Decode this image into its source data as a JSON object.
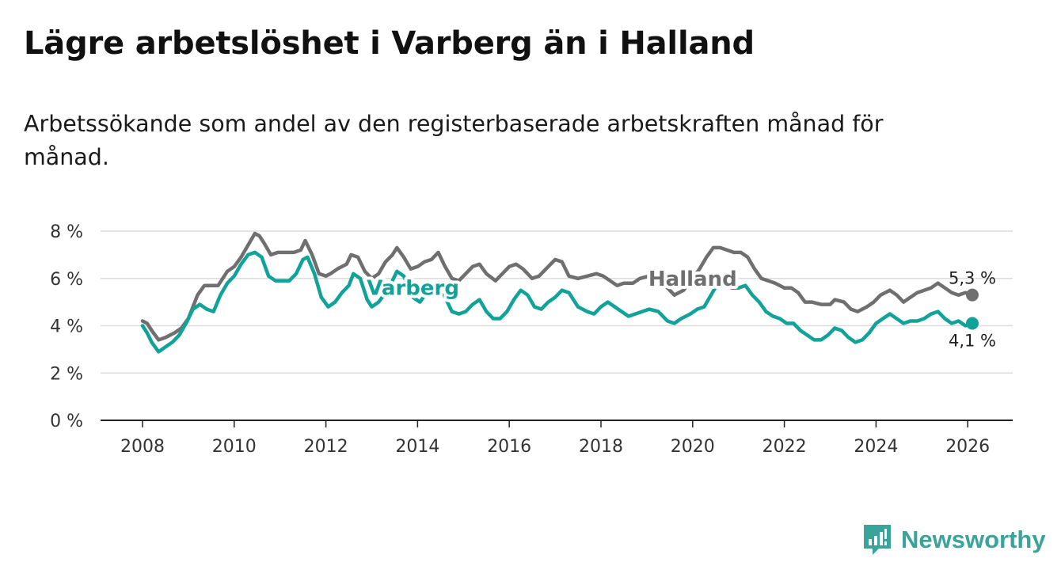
{
  "title": "Lägre arbetslöshet i Varberg än i Halland",
  "subtitle": "Arbetssökande som andel av den registerbaserade arbetskraften månad för månad.",
  "brand": {
    "name": "Newsworthy",
    "color": "#3aa39a"
  },
  "chart_data": {
    "type": "line",
    "title": "Lägre arbetslöshet i Varberg än i Halland",
    "xlabel": "",
    "ylabel": "",
    "xlim": [
      2007.0,
      2027.0
    ],
    "ylim": [
      0,
      8
    ],
    "y_ticks": [
      0,
      2,
      4,
      6,
      8
    ],
    "y_tick_labels": [
      "0 %",
      "2 %",
      "4 %",
      "6 %",
      "8 %"
    ],
    "x_ticks": [
      2008,
      2010,
      2012,
      2014,
      2016,
      2018,
      2020,
      2022,
      2024,
      2026
    ],
    "x_tick_labels": [
      "2008",
      "2010",
      "2012",
      "2014",
      "2016",
      "2018",
      "2020",
      "2022",
      "2024",
      "2026"
    ],
    "grid": true,
    "series": [
      {
        "name": "Halland",
        "color": "#6f6f6f",
        "end_label": "5,3 %",
        "points": [
          [
            2008.0,
            4.2
          ],
          [
            2008.1,
            4.1
          ],
          [
            2008.2,
            3.8
          ],
          [
            2008.35,
            3.4
          ],
          [
            2008.5,
            3.5
          ],
          [
            2008.7,
            3.7
          ],
          [
            2008.85,
            3.9
          ],
          [
            2009.0,
            4.3
          ],
          [
            2009.2,
            5.3
          ],
          [
            2009.35,
            5.7
          ],
          [
            2009.5,
            5.7
          ],
          [
            2009.65,
            5.7
          ],
          [
            2009.85,
            6.3
          ],
          [
            2010.0,
            6.5
          ],
          [
            2010.15,
            6.9
          ],
          [
            2010.3,
            7.4
          ],
          [
            2010.45,
            7.9
          ],
          [
            2010.55,
            7.8
          ],
          [
            2010.65,
            7.5
          ],
          [
            2010.8,
            7.0
          ],
          [
            2010.95,
            7.1
          ],
          [
            2011.1,
            7.1
          ],
          [
            2011.3,
            7.1
          ],
          [
            2011.45,
            7.2
          ],
          [
            2011.55,
            7.6
          ],
          [
            2011.7,
            7.0
          ],
          [
            2011.85,
            6.2
          ],
          [
            2012.0,
            6.1
          ],
          [
            2012.1,
            6.2
          ],
          [
            2012.25,
            6.4
          ],
          [
            2012.45,
            6.6
          ],
          [
            2012.55,
            7.0
          ],
          [
            2012.7,
            6.9
          ],
          [
            2012.85,
            6.3
          ],
          [
            2013.0,
            6.0
          ],
          [
            2013.15,
            6.2
          ],
          [
            2013.3,
            6.7
          ],
          [
            2013.45,
            7.0
          ],
          [
            2013.55,
            7.3
          ],
          [
            2013.7,
            6.9
          ],
          [
            2013.85,
            6.4
          ],
          [
            2014.0,
            6.5
          ],
          [
            2014.15,
            6.7
          ],
          [
            2014.3,
            6.8
          ],
          [
            2014.45,
            7.1
          ],
          [
            2014.6,
            6.5
          ],
          [
            2014.75,
            6.0
          ],
          [
            2014.9,
            5.9
          ],
          [
            2015.05,
            6.2
          ],
          [
            2015.2,
            6.5
          ],
          [
            2015.35,
            6.6
          ],
          [
            2015.5,
            6.2
          ],
          [
            2015.7,
            5.9
          ],
          [
            2015.85,
            6.2
          ],
          [
            2016.0,
            6.5
          ],
          [
            2016.15,
            6.6
          ],
          [
            2016.3,
            6.4
          ],
          [
            2016.5,
            6.0
          ],
          [
            2016.65,
            6.1
          ],
          [
            2016.8,
            6.4
          ],
          [
            2017.0,
            6.8
          ],
          [
            2017.15,
            6.7
          ],
          [
            2017.3,
            6.1
          ],
          [
            2017.5,
            6.0
          ],
          [
            2017.7,
            6.1
          ],
          [
            2017.9,
            6.2
          ],
          [
            2018.05,
            6.1
          ],
          [
            2018.2,
            5.9
          ],
          [
            2018.35,
            5.7
          ],
          [
            2018.5,
            5.8
          ],
          [
            2018.7,
            5.8
          ],
          [
            2018.85,
            6.0
          ],
          [
            2019.05,
            6.1
          ],
          [
            2019.25,
            5.9
          ],
          [
            2019.45,
            5.6
          ],
          [
            2019.6,
            5.3
          ],
          [
            2019.8,
            5.5
          ],
          [
            2020.0,
            6.0
          ],
          [
            2020.15,
            6.4
          ],
          [
            2020.3,
            6.9
          ],
          [
            2020.45,
            7.3
          ],
          [
            2020.6,
            7.3
          ],
          [
            2020.75,
            7.2
          ],
          [
            2020.9,
            7.1
          ],
          [
            2021.05,
            7.1
          ],
          [
            2021.2,
            6.9
          ],
          [
            2021.35,
            6.4
          ],
          [
            2021.5,
            6.0
          ],
          [
            2021.65,
            5.9
          ],
          [
            2021.8,
            5.8
          ],
          [
            2022.0,
            5.6
          ],
          [
            2022.15,
            5.6
          ],
          [
            2022.3,
            5.4
          ],
          [
            2022.45,
            5.0
          ],
          [
            2022.6,
            5.0
          ],
          [
            2022.8,
            4.9
          ],
          [
            2023.0,
            4.9
          ],
          [
            2023.1,
            5.1
          ],
          [
            2023.3,
            5.0
          ],
          [
            2023.45,
            4.7
          ],
          [
            2023.6,
            4.6
          ],
          [
            2023.8,
            4.8
          ],
          [
            2023.95,
            5.0
          ],
          [
            2024.1,
            5.3
          ],
          [
            2024.3,
            5.5
          ],
          [
            2024.45,
            5.3
          ],
          [
            2024.6,
            5.0
          ],
          [
            2024.75,
            5.2
          ],
          [
            2024.9,
            5.4
          ],
          [
            2025.05,
            5.5
          ],
          [
            2025.2,
            5.6
          ],
          [
            2025.35,
            5.8
          ],
          [
            2025.5,
            5.6
          ],
          [
            2025.65,
            5.4
          ],
          [
            2025.8,
            5.3
          ],
          [
            2025.95,
            5.4
          ],
          [
            2026.1,
            5.3
          ]
        ]
      },
      {
        "name": "Varberg",
        "color": "#11a39a",
        "end_label": "4,1 %",
        "points": [
          [
            2008.0,
            4.0
          ],
          [
            2008.1,
            3.7
          ],
          [
            2008.2,
            3.3
          ],
          [
            2008.35,
            2.9
          ],
          [
            2008.5,
            3.1
          ],
          [
            2008.65,
            3.3
          ],
          [
            2008.8,
            3.6
          ],
          [
            2008.95,
            4.1
          ],
          [
            2009.1,
            4.7
          ],
          [
            2009.25,
            4.9
          ],
          [
            2009.4,
            4.7
          ],
          [
            2009.55,
            4.6
          ],
          [
            2009.7,
            5.3
          ],
          [
            2009.85,
            5.8
          ],
          [
            2010.0,
            6.1
          ],
          [
            2010.15,
            6.6
          ],
          [
            2010.3,
            7.0
          ],
          [
            2010.45,
            7.1
          ],
          [
            2010.6,
            6.9
          ],
          [
            2010.75,
            6.1
          ],
          [
            2010.9,
            5.9
          ],
          [
            2011.05,
            5.9
          ],
          [
            2011.2,
            5.9
          ],
          [
            2011.35,
            6.2
          ],
          [
            2011.5,
            6.8
          ],
          [
            2011.6,
            6.9
          ],
          [
            2011.75,
            6.2
          ],
          [
            2011.9,
            5.2
          ],
          [
            2012.05,
            4.8
          ],
          [
            2012.2,
            5.0
          ],
          [
            2012.35,
            5.4
          ],
          [
            2012.5,
            5.7
          ],
          [
            2012.6,
            6.2
          ],
          [
            2012.75,
            6.0
          ],
          [
            2012.9,
            5.1
          ],
          [
            2013.0,
            4.8
          ],
          [
            2013.15,
            5.0
          ],
          [
            2013.3,
            5.4
          ],
          [
            2013.45,
            5.9
          ],
          [
            2013.55,
            6.3
          ],
          [
            2013.7,
            6.1
          ],
          [
            2013.9,
            5.2
          ],
          [
            2014.05,
            5.0
          ],
          [
            2014.2,
            5.4
          ],
          [
            2014.35,
            5.6
          ],
          [
            2014.5,
            5.7
          ],
          [
            2014.6,
            5.2
          ],
          [
            2014.75,
            4.6
          ],
          [
            2014.9,
            4.5
          ],
          [
            2015.05,
            4.6
          ],
          [
            2015.2,
            4.9
          ],
          [
            2015.35,
            5.1
          ],
          [
            2015.5,
            4.6
          ],
          [
            2015.65,
            4.3
          ],
          [
            2015.8,
            4.3
          ],
          [
            2015.95,
            4.6
          ],
          [
            2016.1,
            5.1
          ],
          [
            2016.25,
            5.5
          ],
          [
            2016.4,
            5.3
          ],
          [
            2016.55,
            4.8
          ],
          [
            2016.7,
            4.7
          ],
          [
            2016.85,
            5.0
          ],
          [
            2017.0,
            5.2
          ],
          [
            2017.15,
            5.5
          ],
          [
            2017.3,
            5.4
          ],
          [
            2017.5,
            4.8
          ],
          [
            2017.7,
            4.6
          ],
          [
            2017.85,
            4.5
          ],
          [
            2018.0,
            4.8
          ],
          [
            2018.15,
            5.0
          ],
          [
            2018.3,
            4.8
          ],
          [
            2018.45,
            4.6
          ],
          [
            2018.6,
            4.4
          ],
          [
            2018.75,
            4.5
          ],
          [
            2018.9,
            4.6
          ],
          [
            2019.05,
            4.7
          ],
          [
            2019.25,
            4.6
          ],
          [
            2019.45,
            4.2
          ],
          [
            2019.6,
            4.1
          ],
          [
            2019.75,
            4.3
          ],
          [
            2019.95,
            4.5
          ],
          [
            2020.1,
            4.7
          ],
          [
            2020.25,
            4.8
          ],
          [
            2020.4,
            5.3
          ],
          [
            2020.55,
            5.8
          ],
          [
            2020.7,
            5.8
          ],
          [
            2020.85,
            5.6
          ],
          [
            2021.0,
            5.6
          ],
          [
            2021.15,
            5.7
          ],
          [
            2021.3,
            5.3
          ],
          [
            2021.45,
            5.0
          ],
          [
            2021.6,
            4.6
          ],
          [
            2021.75,
            4.4
          ],
          [
            2021.9,
            4.3
          ],
          [
            2022.05,
            4.1
          ],
          [
            2022.2,
            4.1
          ],
          [
            2022.35,
            3.8
          ],
          [
            2022.5,
            3.6
          ],
          [
            2022.65,
            3.4
          ],
          [
            2022.8,
            3.4
          ],
          [
            2022.95,
            3.6
          ],
          [
            2023.1,
            3.9
          ],
          [
            2023.25,
            3.8
          ],
          [
            2023.4,
            3.5
          ],
          [
            2023.55,
            3.3
          ],
          [
            2023.7,
            3.4
          ],
          [
            2023.85,
            3.7
          ],
          [
            2024.0,
            4.1
          ],
          [
            2024.15,
            4.3
          ],
          [
            2024.3,
            4.5
          ],
          [
            2024.45,
            4.3
          ],
          [
            2024.6,
            4.1
          ],
          [
            2024.75,
            4.2
          ],
          [
            2024.9,
            4.2
          ],
          [
            2025.05,
            4.3
          ],
          [
            2025.2,
            4.5
          ],
          [
            2025.35,
            4.6
          ],
          [
            2025.5,
            4.3
          ],
          [
            2025.65,
            4.1
          ],
          [
            2025.8,
            4.2
          ],
          [
            2025.95,
            4.0
          ],
          [
            2026.1,
            4.1
          ]
        ]
      }
    ],
    "annotations": [
      {
        "series": "Halland",
        "text": "Halland",
        "at": [
          2020.0,
          6.0
        ]
      },
      {
        "series": "Varberg",
        "text": "Varberg",
        "at": [
          2013.9,
          5.6
        ]
      }
    ]
  }
}
